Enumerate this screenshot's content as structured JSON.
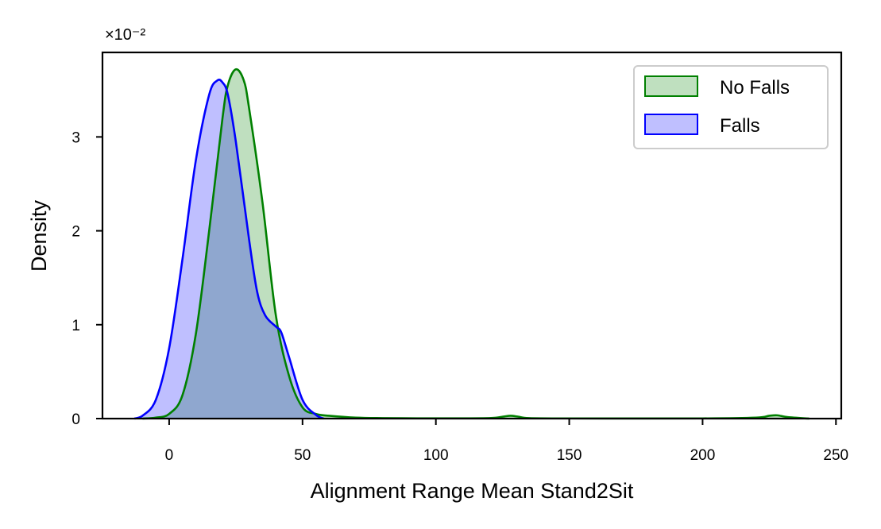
{
  "chart_data": {
    "type": "area",
    "title": "",
    "xlabel": "Alignment Range Mean Stand2Sit",
    "ylabel": "Density",
    "y_offset_label": "×10⁻²",
    "xlim": [
      -25,
      252
    ],
    "ylim": [
      0,
      3.9
    ],
    "x_ticks": [
      0,
      50,
      100,
      150,
      200,
      250
    ],
    "x_tick_labels": [
      "0",
      "50",
      "100",
      "150",
      "200",
      "250"
    ],
    "y_ticks": [
      0,
      1,
      2,
      3
    ],
    "y_tick_labels": [
      "0",
      "1",
      "2",
      "3"
    ],
    "grid": false,
    "legend_position": "top-right",
    "series": [
      {
        "name": "No Falls",
        "color": "#008000",
        "fill": "#bfe0bf",
        "x": [
          -10,
          -5,
          0,
          5,
          10,
          15,
          20,
          22,
          25,
          28,
          30,
          35,
          40,
          45,
          50,
          55,
          60,
          70,
          80,
          100,
          120,
          125,
          128,
          131,
          135,
          150,
          200,
          220,
          225,
          228,
          232,
          240
        ],
        "y": [
          0,
          0.01,
          0.05,
          0.25,
          0.9,
          2.0,
          3.2,
          3.55,
          3.72,
          3.6,
          3.3,
          2.3,
          1.1,
          0.45,
          0.12,
          0.05,
          0.03,
          0.01,
          0.005,
          0.003,
          0.005,
          0.02,
          0.03,
          0.02,
          0.005,
          0.002,
          0.002,
          0.01,
          0.03,
          0.035,
          0.015,
          0
        ]
      },
      {
        "name": "Falls",
        "color": "#0000ff",
        "fill": "#bfbfff",
        "x": [
          -13,
          -10,
          -5,
          0,
          5,
          10,
          15,
          18,
          20,
          22,
          25,
          30,
          33,
          36,
          40,
          42,
          45,
          50,
          55,
          58
        ],
        "y": [
          0,
          0.03,
          0.2,
          0.75,
          1.7,
          2.75,
          3.45,
          3.6,
          3.58,
          3.45,
          2.95,
          1.9,
          1.35,
          1.1,
          0.98,
          0.92,
          0.65,
          0.2,
          0.04,
          0
        ]
      }
    ]
  }
}
